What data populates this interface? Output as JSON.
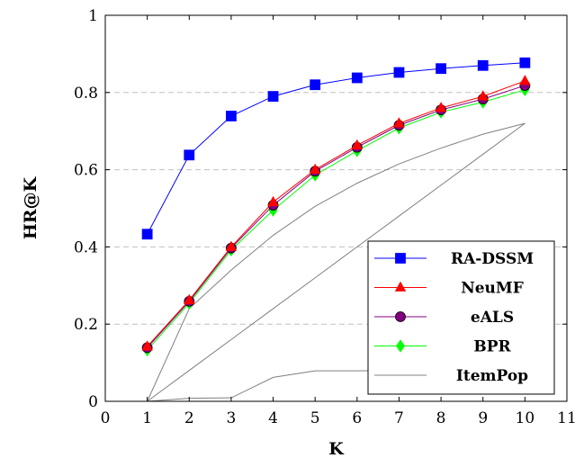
{
  "chart_data": {
    "type": "line",
    "xlabel": "K",
    "ylabel": "HR@K",
    "xlim": [
      0,
      11
    ],
    "ylim": [
      0,
      1
    ],
    "x_ticks": [
      "0",
      "1",
      "2",
      "3",
      "4",
      "5",
      "6",
      "7",
      "8",
      "9",
      "10",
      "11"
    ],
    "y_ticks": [
      "0",
      "0.2",
      "0.4",
      "0.6",
      "0.8",
      "1"
    ],
    "y_grid": [
      0.2,
      0.4,
      0.6,
      0.8
    ],
    "grid": "horizontal dashed",
    "legend_position": "bottom-right",
    "x": [
      1,
      2,
      3,
      4,
      5,
      6,
      7,
      8,
      9,
      10
    ],
    "series": [
      {
        "name": "RA-DSSM",
        "color": "#0000ff",
        "marker": "square",
        "values": [
          0.433,
          0.638,
          0.739,
          0.79,
          0.82,
          0.838,
          0.852,
          0.862,
          0.87,
          0.877
        ]
      },
      {
        "name": "NeuMF",
        "color": "#ff0000",
        "marker": "triangle",
        "values": [
          0.142,
          0.262,
          0.4,
          0.516,
          0.6,
          0.663,
          0.72,
          0.76,
          0.79,
          0.83
        ]
      },
      {
        "name": "eALS",
        "color": "#800080",
        "marker": "circle",
        "values": [
          0.139,
          0.259,
          0.397,
          0.508,
          0.596,
          0.658,
          0.715,
          0.755,
          0.783,
          0.818
        ]
      },
      {
        "name": "BPR",
        "color": "#00ff00",
        "marker": "diamond",
        "values": [
          0.133,
          0.254,
          0.392,
          0.495,
          0.586,
          0.649,
          0.708,
          0.749,
          0.775,
          0.807
        ]
      },
      {
        "name": "ItemPop",
        "color": "#808080",
        "marker": "none",
        "values": [
          0.0,
          0.008,
          0.009,
          0.062,
          0.079,
          0.079,
          0.08,
          0.08,
          0.081,
          0.081
        ]
      }
    ],
    "extra_lines": {
      "color": "#808080",
      "note_lines": [
        {
          "x": [
            1,
            2,
            3,
            4,
            5,
            6,
            7,
            8,
            9,
            10
          ],
          "values": [
            0.0,
            0.08,
            0.16,
            0.24,
            0.32,
            0.4,
            0.48,
            0.56,
            0.64,
            0.72
          ]
        },
        {
          "x": [
            1,
            2,
            3,
            4,
            5,
            6,
            7,
            8,
            9,
            10
          ],
          "values": [
            0.0,
            0.24,
            0.34,
            0.43,
            0.505,
            0.565,
            0.615,
            0.656,
            0.692,
            0.72
          ]
        }
      ]
    }
  }
}
